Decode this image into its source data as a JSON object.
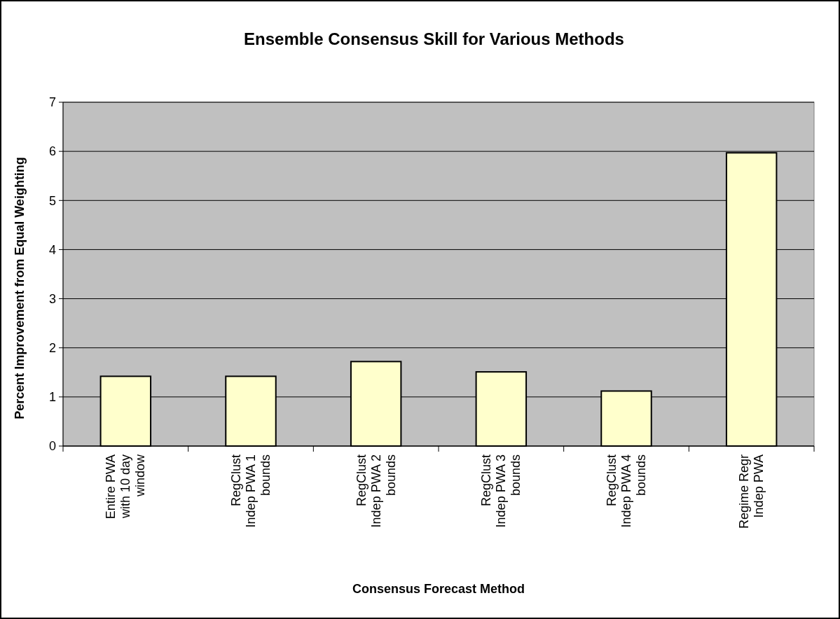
{
  "chart_data": {
    "type": "bar",
    "title": "Ensemble Consensus Skill for Various Methods",
    "xlabel": "Consensus Forecast Method",
    "ylabel": "Percent Improvement from Equal Weighting",
    "categories": [
      "Entire PWA\nwith 10 day\nwindow",
      "RegClust\nIndep PWA 1\nbounds",
      "RegClust\nIndep PWA 2\nbounds",
      "RegClust\nIndep PWA 3\nbounds",
      "RegClust\nIndep PWA 4\nbounds",
      "Regime Regr\nIndep PWA"
    ],
    "values": [
      1.42,
      1.42,
      1.72,
      1.51,
      1.12,
      5.97
    ],
    "color": "#ffffcc",
    "ylim": [
      0,
      7
    ],
    "yticks": [
      0,
      1,
      2,
      3,
      4,
      5,
      6,
      7
    ],
    "grid": "y"
  }
}
